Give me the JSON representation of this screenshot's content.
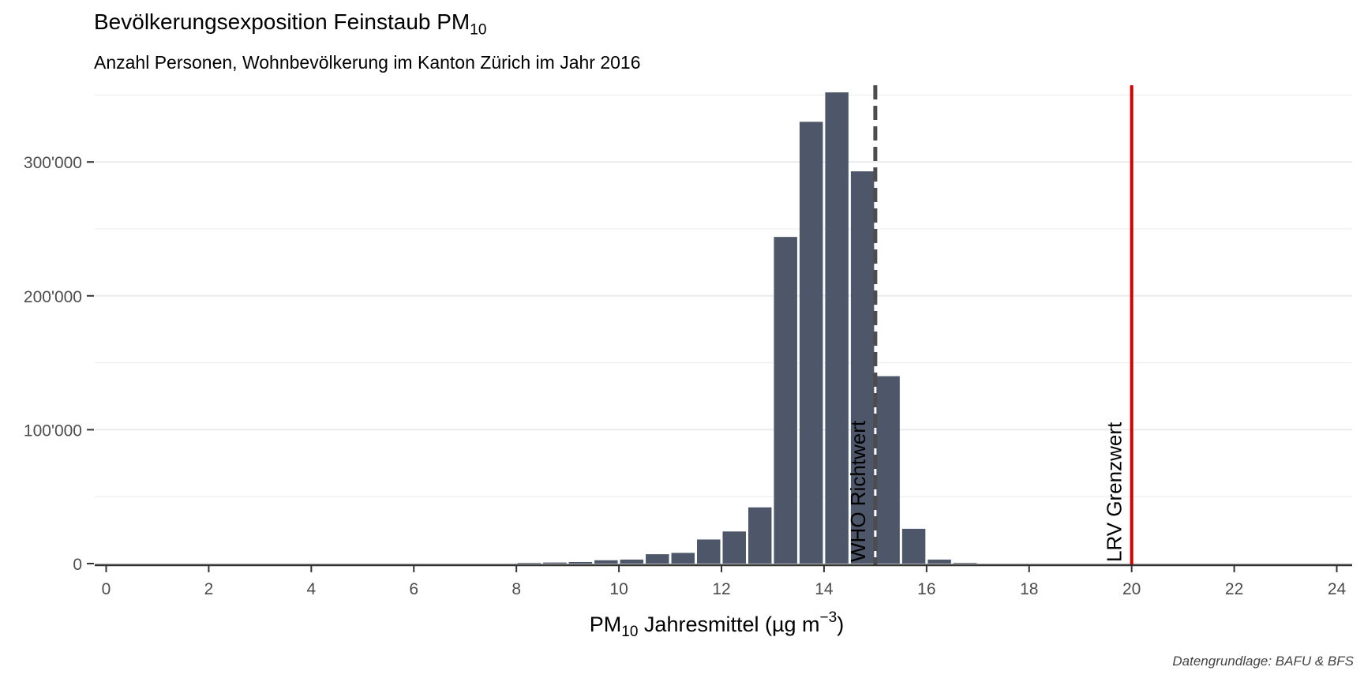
{
  "title": {
    "main": "Bevölkerungsexposition Feinstaub PM",
    "sub": "10"
  },
  "subtitle": "Anzahl Personen, Wohnbevölkerung im Kanton Zürich im Jahr 2016",
  "caption": "Datengrundlage: BAFU & BFS",
  "xlabel": {
    "pre": "PM",
    "pre_sub": "10",
    "mid": " Jahresmittel (µg m",
    "sup": "−3",
    "post": ")"
  },
  "colors": {
    "bar": "#4d5769",
    "who_line": "#4d4d4d",
    "lrv_line": "#d10000",
    "grid": "#ebebeb",
    "axis": "#333333"
  },
  "chart_data": {
    "type": "bar",
    "title": "Bevölkerungsexposition Feinstaub PM10",
    "subtitle": "Anzahl Personen, Wohnbevölkerung im Kanton Zürich im Jahr 2016",
    "xlabel": "PM10 Jahresmittel (µg m−3)",
    "ylabel": "",
    "xlim": [
      0,
      24
    ],
    "ylim": [
      0,
      352000
    ],
    "xticks": [
      0,
      2,
      4,
      6,
      8,
      10,
      12,
      14,
      16,
      18,
      20,
      22,
      24
    ],
    "xtick_labels": [
      "0",
      "2",
      "4",
      "6",
      "8",
      "10",
      "12",
      "14",
      "16",
      "18",
      "20",
      "22",
      "24"
    ],
    "yticks": [
      0,
      100000,
      200000,
      300000
    ],
    "ytick_labels": [
      "0",
      "100'000",
      "200'000",
      "300'000"
    ],
    "bin_width": 0.5,
    "bins": [
      {
        "x": 8.25,
        "y": 500
      },
      {
        "x": 8.75,
        "y": 800
      },
      {
        "x": 9.25,
        "y": 1200
      },
      {
        "x": 9.75,
        "y": 2500
      },
      {
        "x": 10.25,
        "y": 3000
      },
      {
        "x": 10.75,
        "y": 7000
      },
      {
        "x": 11.25,
        "y": 8000
      },
      {
        "x": 11.75,
        "y": 18000
      },
      {
        "x": 12.25,
        "y": 24000
      },
      {
        "x": 12.75,
        "y": 42000
      },
      {
        "x": 13.25,
        "y": 244000
      },
      {
        "x": 13.75,
        "y": 330000
      },
      {
        "x": 14.25,
        "y": 352000
      },
      {
        "x": 14.75,
        "y": 293000
      },
      {
        "x": 15.25,
        "y": 140000
      },
      {
        "x": 15.75,
        "y": 26000
      },
      {
        "x": 16.25,
        "y": 3000
      },
      {
        "x": 16.75,
        "y": 500
      }
    ],
    "annotations": [
      {
        "label": "WHO Richtwert",
        "x": 15,
        "style": "dashed"
      },
      {
        "label": "LRV Grenzwert",
        "x": 20,
        "style": "solid"
      }
    ],
    "grid": true,
    "legend": "none"
  }
}
